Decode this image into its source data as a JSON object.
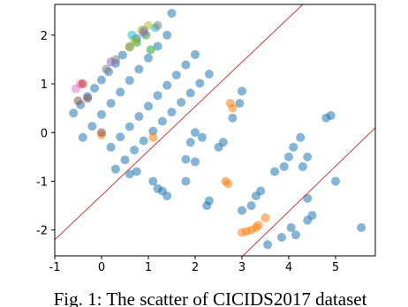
{
  "chart_data": {
    "type": "scatter",
    "caption": "Fig. 1: The scatter of CICIDS2017 dataset",
    "xlim": [
      -1,
      5.85
    ],
    "ylim": [
      -2.53,
      2.63
    ],
    "xticks": [
      -1,
      0,
      1,
      2,
      3,
      4,
      5
    ],
    "yticks": [
      -2,
      -1,
      0,
      1,
      2
    ],
    "lines": [
      {
        "color": "#d62728",
        "x": [
          -1,
          4.3
        ],
        "y": [
          -2.2,
          2.63
        ]
      },
      {
        "color": "#d62728",
        "x": [
          3.02,
          5.85
        ],
        "y": [
          -2.53,
          0.1
        ]
      }
    ],
    "series": [
      {
        "color": "#1f77b4",
        "x": [
          -0.6,
          -0.45,
          -0.3,
          -0.15,
          0,
          0.15,
          0.3,
          0.45,
          0.6,
          0.75,
          0.9,
          -0.4,
          -0.2,
          0,
          0.2,
          0.4,
          0.6,
          0.8,
          1.0,
          1.2,
          1.4,
          0.2,
          0.4,
          0.6,
          0.8,
          1.0,
          1.2,
          1.4,
          1.6,
          1.8,
          2.0,
          0.3,
          0.5,
          0.7,
          0.9,
          1.1,
          1.3,
          1.5,
          1.7,
          1.9,
          2.1,
          2.3,
          1.5,
          2.5,
          2.6,
          2.8,
          2.95,
          3.0,
          1.8,
          1.2,
          1.3,
          1.4,
          2.3,
          2.25,
          2.0,
          1.8,
          3.7,
          3.9,
          4.0,
          4.3,
          4.4,
          4.8,
          4.9,
          4.1,
          4.25,
          3.3,
          3.4,
          3.2,
          3.0,
          4.4,
          4.5,
          4.4,
          5.0,
          5.55,
          3.55,
          3.85,
          4.15,
          4.05,
          1.1,
          0.6,
          0.75,
          1.9,
          2.15,
          2.0
        ],
        "y": [
          0.4,
          0.57,
          0.74,
          0.91,
          1.08,
          1.25,
          1.42,
          1.59,
          1.76,
          1.93,
          2.1,
          -0.1,
          0.13,
          0.37,
          0.6,
          0.83,
          1.07,
          1.3,
          1.53,
          1.77,
          2.0,
          -0.3,
          -0.09,
          0.12,
          0.33,
          0.54,
          0.76,
          0.97,
          1.18,
          1.39,
          1.6,
          -0.75,
          -0.56,
          -0.36,
          -0.17,
          0.03,
          0.23,
          0.42,
          0.62,
          0.81,
          1.01,
          1.2,
          2.45,
          -0.3,
          -0.2,
          0.3,
          0.6,
          0.85,
          -1.0,
          -1.15,
          -1.2,
          -1.3,
          -1.4,
          -1.5,
          -0.6,
          -0.55,
          -0.8,
          -0.7,
          -0.5,
          -0.7,
          -0.5,
          0.3,
          0.35,
          -0.3,
          -0.1,
          -1.3,
          -1.2,
          -1.5,
          -1.6,
          -1.35,
          -1.7,
          -1.8,
          -1.0,
          -1.95,
          -2.3,
          -2.15,
          -2.1,
          -1.95,
          -1.0,
          -0.85,
          -0.8,
          -0.2,
          -0.1,
          0.0
        ]
      },
      {
        "color": "#ff7f0e",
        "x": [
          2.7,
          2.65,
          3.0,
          3.1,
          3.2,
          3.3,
          3.35,
          3.5,
          2.75,
          2.8,
          1.1,
          0.0
        ],
        "y": [
          -1.05,
          -1.0,
          -2.05,
          -2.03,
          -2.0,
          -1.95,
          -1.9,
          -1.75,
          0.6,
          0.5,
          -0.1,
          -0.05
        ]
      },
      {
        "color": "#2ca02c",
        "x": [
          0.75,
          0.95,
          1.05
        ],
        "y": [
          1.85,
          2.0,
          1.7
        ]
      },
      {
        "color": "#bcbd22",
        "x": [
          0.85,
          0.7,
          1.0,
          0.6
        ],
        "y": [
          2.1,
          1.9,
          2.2,
          1.75
        ]
      },
      {
        "color": "#17becf",
        "x": [
          1.15,
          0.65
        ],
        "y": [
          2.15,
          2.0
        ]
      },
      {
        "color": "#e377c2",
        "x": [
          -0.55,
          -0.45
        ],
        "y": [
          0.9,
          1.0
        ]
      },
      {
        "color": "#7f7f7f",
        "x": [
          0.3,
          0.1,
          1.2
        ],
        "y": [
          1.5,
          1.3,
          2.2
        ]
      },
      {
        "color": "#9467bd",
        "x": [
          0.9,
          0.2
        ],
        "y": [
          2.05,
          1.45
        ]
      },
      {
        "color": "#8c564b",
        "x": [
          -0.3,
          0.0,
          -0.5
        ],
        "y": [
          0.7,
          0.0,
          0.65
        ]
      },
      {
        "color": "#d62728",
        "x": [
          -0.4
        ],
        "y": [
          1.0
        ]
      }
    ]
  }
}
